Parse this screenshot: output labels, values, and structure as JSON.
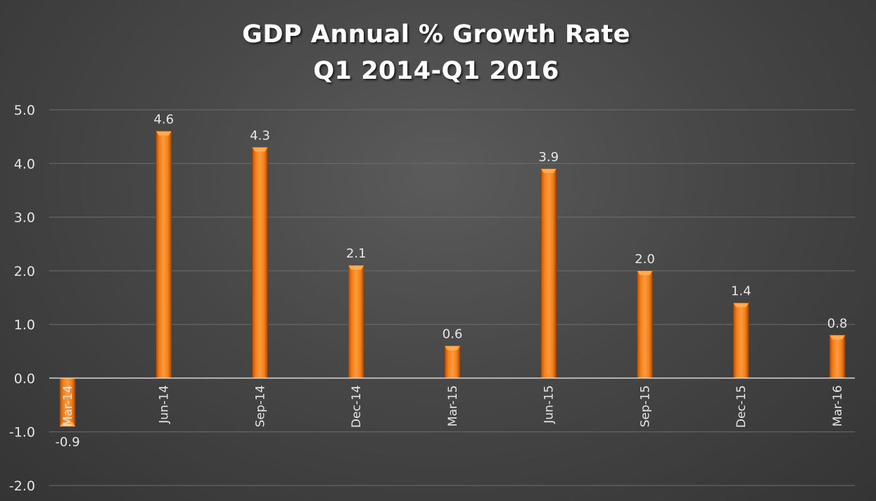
{
  "chart_data": {
    "type": "bar",
    "title": "GDP Annual % Growth Rate",
    "subtitle": "Q1 2014-Q1 2016",
    "categories": [
      "Mar-14",
      "Jun-14",
      "Sep-14",
      "Dec-14",
      "Mar-15",
      "Jun-15",
      "Sep-15",
      "Dec-15",
      "Mar-16"
    ],
    "values": [
      -0.9,
      4.6,
      4.3,
      2.1,
      0.6,
      3.9,
      2.0,
      1.4,
      0.8
    ],
    "data_labels": [
      "-0.9",
      "4.6",
      "4.3",
      "2.1",
      "0.6",
      "3.9",
      "2.0",
      "1.4",
      "0.8"
    ],
    "yticks": [
      "-2.0",
      "-1.0",
      "0.0",
      "1.0",
      "2.0",
      "3.0",
      "4.0",
      "5.0"
    ],
    "ylim": [
      -2,
      5
    ],
    "xlabel": "",
    "ylabel": "",
    "grid": true,
    "legend": "none",
    "bar_color": "#f07f1c",
    "background_color": "#474747"
  }
}
